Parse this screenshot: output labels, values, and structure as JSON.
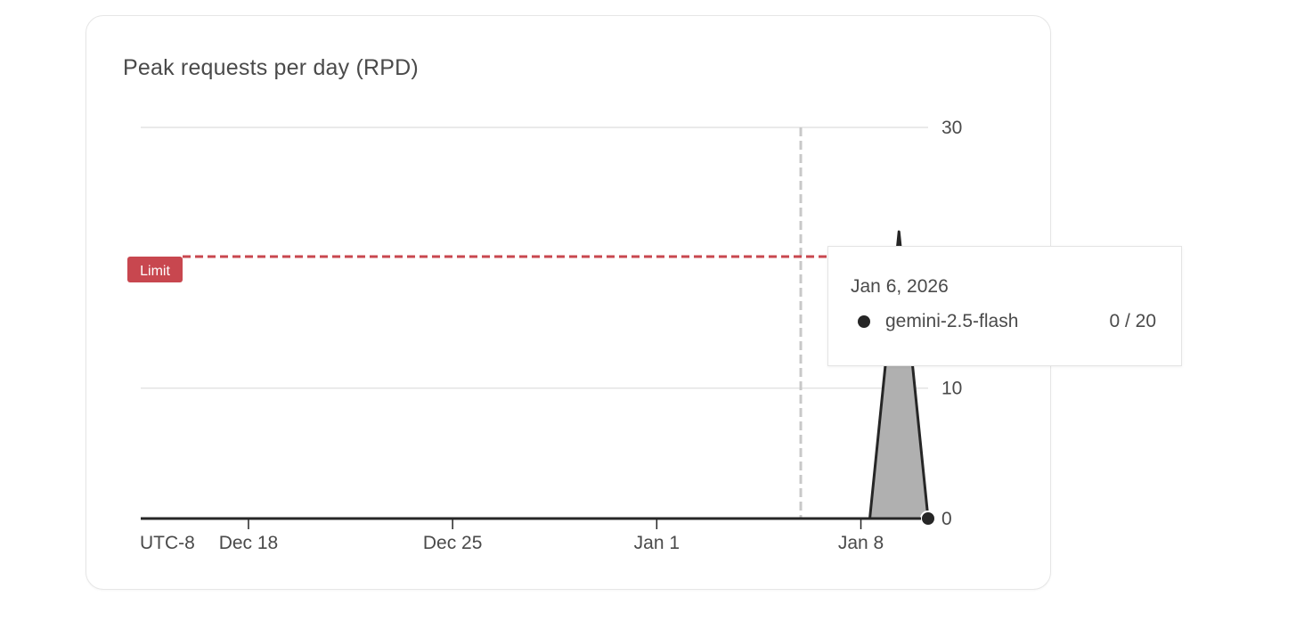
{
  "card": {
    "title": "Peak requests per day (RPD)"
  },
  "chart_data": {
    "type": "area",
    "title": "Peak requests per day (RPD)",
    "timezone_label": "UTC-8",
    "x_ticks": [
      "Dec 18",
      "Dec 25",
      "Jan 1",
      "Jan 8"
    ],
    "y_ticks": [
      0,
      10,
      30
    ],
    "ylim": [
      0,
      30
    ],
    "y_axis_side": "right",
    "series": [
      {
        "name": "gemini-2.5-flash",
        "color": "#262626",
        "fill": "#b0b0b0",
        "x": [
          "Dec 14",
          "Jan 8",
          "Jan 9",
          "Jan 10"
        ],
        "values": [
          0,
          0,
          22,
          0
        ]
      }
    ],
    "limit": {
      "label": "Limit",
      "value": 20,
      "color": "#c8474f"
    },
    "hover_date": "Jan 6, 2026",
    "grid": true
  },
  "tooltip": {
    "date": "Jan 6, 2026",
    "series_name": "gemini-2.5-flash",
    "value": "0 / 20"
  }
}
